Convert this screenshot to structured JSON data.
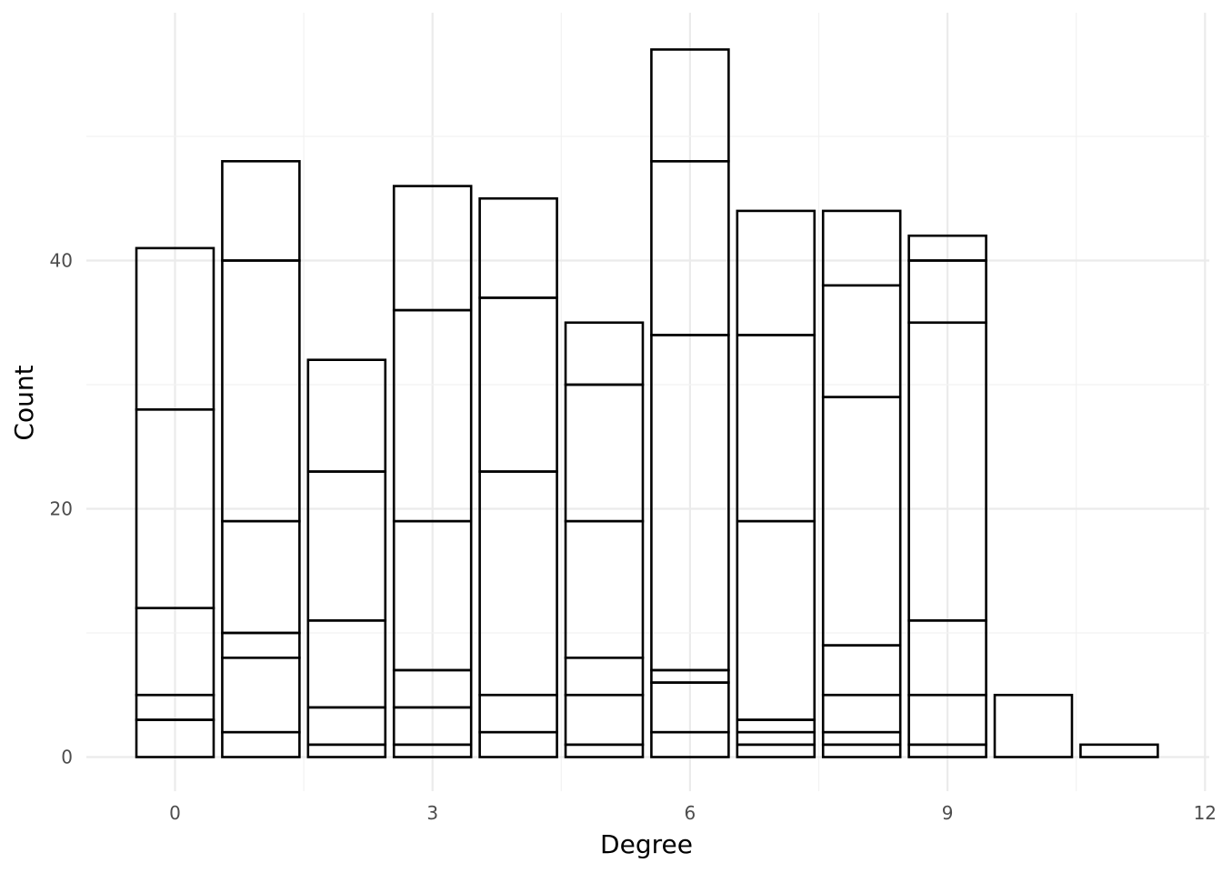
{
  "chart_data": {
    "type": "bar",
    "stacked": true,
    "title": "",
    "xlabel": "Degree",
    "ylabel": "Count",
    "xlim": [
      -0.6,
      12
    ],
    "ylim": [
      0,
      57
    ],
    "x_ticks": [
      0,
      3,
      6,
      9,
      12
    ],
    "x_tick_labels": [
      "0",
      "3",
      "6",
      "9",
      "12"
    ],
    "y_ticks": [
      0,
      20,
      40
    ],
    "y_tick_labels": [
      "0",
      "20",
      "40"
    ],
    "grid": true,
    "legend": "none",
    "fill_color": "none",
    "outline_color": "#000000",
    "x": [
      0,
      1,
      2,
      3,
      4,
      5,
      6,
      7,
      8,
      9,
      10,
      11
    ],
    "stack_boundaries": [
      [
        3,
        5,
        12,
        28,
        41
      ],
      [
        2,
        8,
        10,
        19,
        40,
        48
      ],
      [
        1,
        4,
        11,
        23,
        32
      ],
      [
        1,
        4,
        7,
        19,
        36,
        46
      ],
      [
        2,
        5,
        23,
        37,
        45
      ],
      [
        1,
        5,
        8,
        19,
        30,
        35
      ],
      [
        2,
        6,
        7,
        34,
        48,
        57
      ],
      [
        1,
        2,
        3,
        19,
        34,
        44
      ],
      [
        1,
        2,
        5,
        9,
        29,
        38,
        44
      ],
      [
        1,
        5,
        11,
        35,
        40,
        42
      ],
      [
        5
      ],
      [
        1
      ]
    ],
    "totals": [
      41,
      48,
      32,
      46,
      45,
      35,
      57,
      44,
      44,
      42,
      5,
      1
    ]
  }
}
